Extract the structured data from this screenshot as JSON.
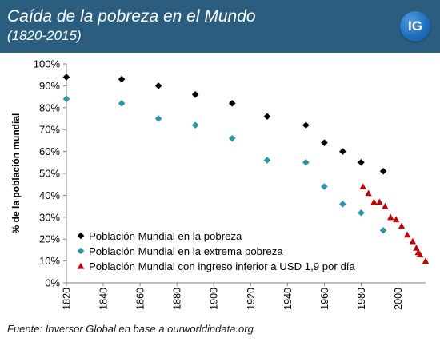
{
  "header": {
    "title": "Caída de la pobreza en el Mundo",
    "subtitle": "(1820-2015)",
    "logo_text": "IG",
    "background_color": "#2b5e7e"
  },
  "footer": {
    "source": "Fuente: Inversor Global en base a ourworldindata.org"
  },
  "chart_data": {
    "type": "scatter",
    "title": "",
    "xlabel": "",
    "ylabel": "% de la población mundial",
    "xlim": [
      1820,
      2015
    ],
    "ylim": [
      0,
      1
    ],
    "x_ticks": [
      1820,
      1840,
      1860,
      1880,
      1900,
      1920,
      1940,
      1960,
      1980,
      2000
    ],
    "x_tick_labels": [
      "1820",
      "1840",
      "1860",
      "1880",
      "1900",
      "1920",
      "1940",
      "1960",
      "1980",
      "2000"
    ],
    "y_ticks": [
      0,
      0.1,
      0.2,
      0.3,
      0.4,
      0.5,
      0.6,
      0.7,
      0.8,
      0.9,
      1.0
    ],
    "y_tick_labels": [
      "0%",
      "10%",
      "20%",
      "30%",
      "40%",
      "50%",
      "60%",
      "70%",
      "80%",
      "90%",
      "100%"
    ],
    "grid": false,
    "legend_position": "bottom-left",
    "series": [
      {
        "name": "Población Mundial en la pobreza",
        "marker": "diamond",
        "color": "#000000",
        "points": [
          [
            1820,
            0.94
          ],
          [
            1850,
            0.93
          ],
          [
            1870,
            0.9
          ],
          [
            1890,
            0.86
          ],
          [
            1910,
            0.82
          ],
          [
            1929,
            0.76
          ],
          [
            1950,
            0.72
          ],
          [
            1960,
            0.64
          ],
          [
            1970,
            0.6
          ],
          [
            1980,
            0.55
          ],
          [
            1992,
            0.51
          ]
        ]
      },
      {
        "name": "Población Mundial en la extrema pobreza",
        "marker": "diamond",
        "color": "#2e94a8",
        "points": [
          [
            1820,
            0.84
          ],
          [
            1850,
            0.82
          ],
          [
            1870,
            0.75
          ],
          [
            1890,
            0.72
          ],
          [
            1910,
            0.66
          ],
          [
            1929,
            0.56
          ],
          [
            1950,
            0.55
          ],
          [
            1960,
            0.44
          ],
          [
            1970,
            0.36
          ],
          [
            1980,
            0.32
          ],
          [
            1992,
            0.24
          ]
        ]
      },
      {
        "name": "Población Mundial con ingreso inferior a USD 1,9 por día",
        "marker": "triangle",
        "color": "#c00000",
        "points": [
          [
            1981,
            0.44
          ],
          [
            1984,
            0.41
          ],
          [
            1987,
            0.37
          ],
          [
            1990,
            0.37
          ],
          [
            1993,
            0.35
          ],
          [
            1996,
            0.3
          ],
          [
            1999,
            0.29
          ],
          [
            2002,
            0.26
          ],
          [
            2005,
            0.22
          ],
          [
            2008,
            0.19
          ],
          [
            2010,
            0.16
          ],
          [
            2011,
            0.14
          ],
          [
            2012,
            0.13
          ],
          [
            2015,
            0.1
          ]
        ]
      }
    ]
  }
}
